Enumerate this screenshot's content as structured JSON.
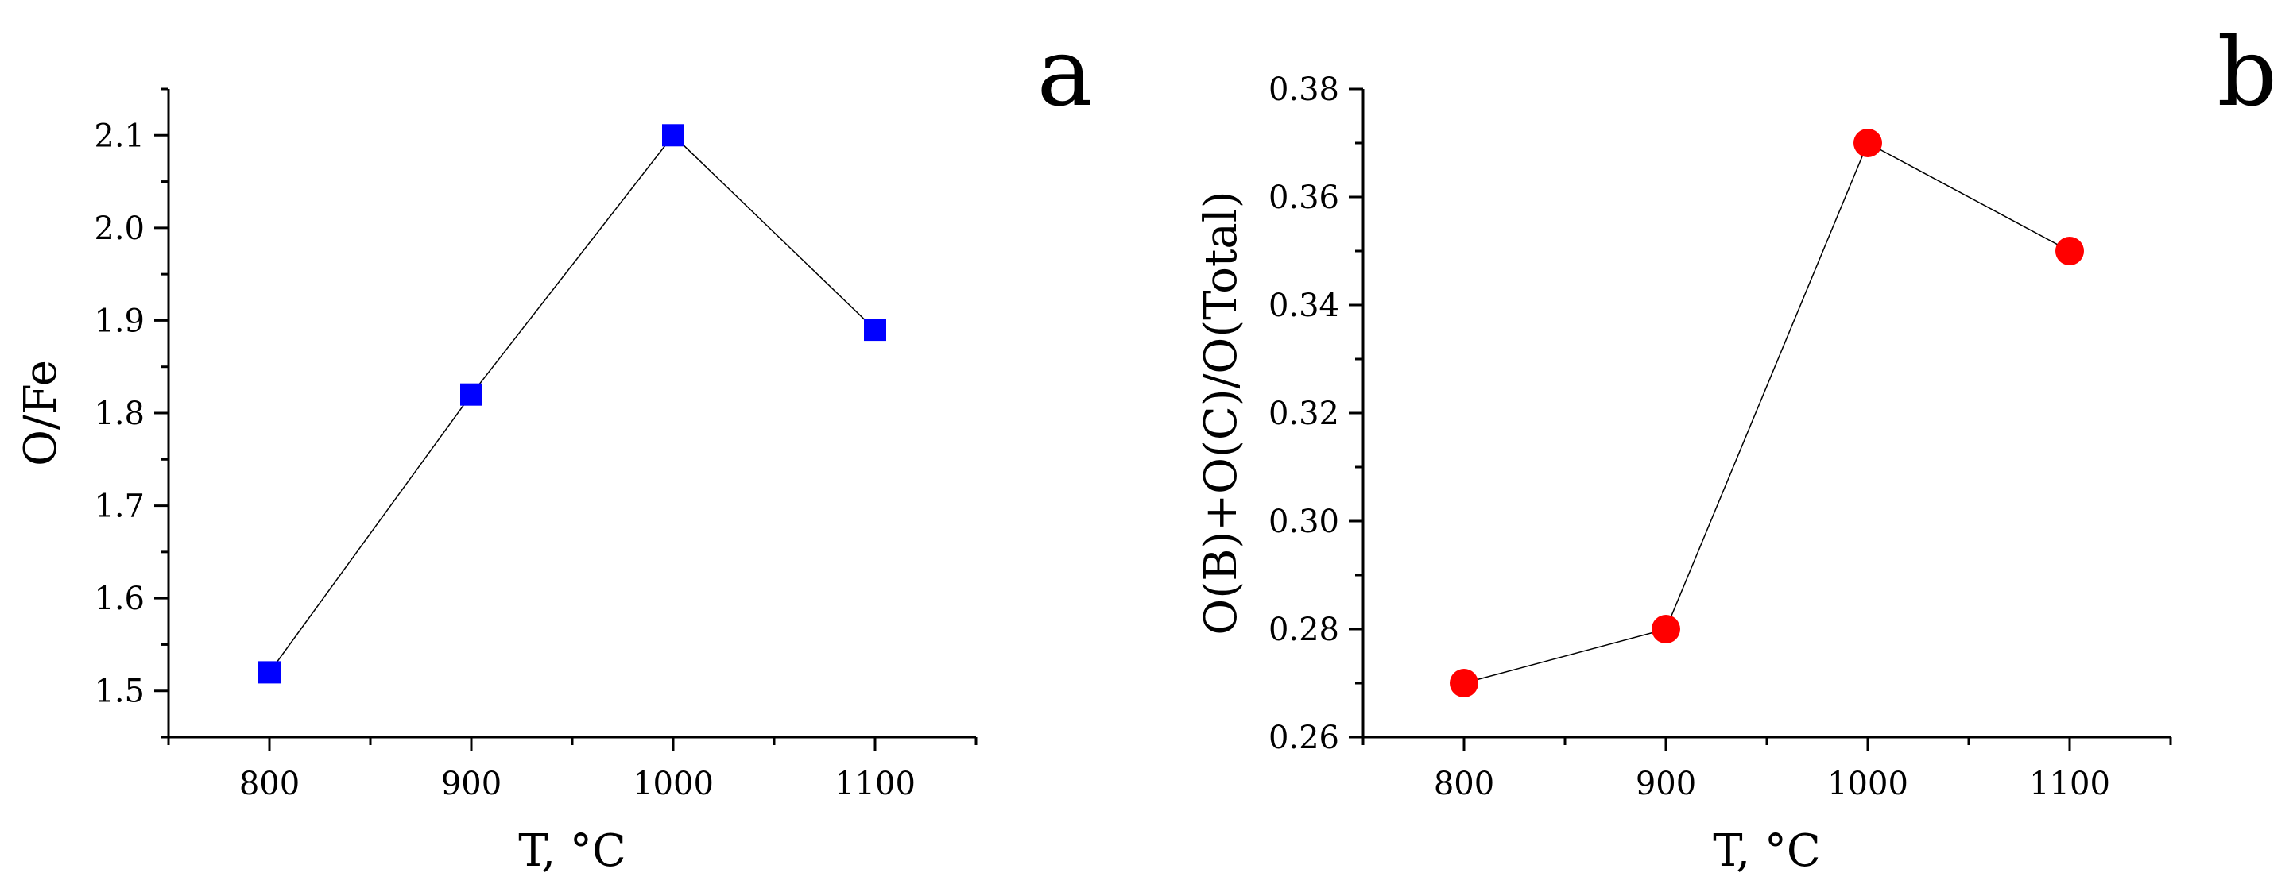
{
  "chart_data": [
    {
      "type": "line",
      "panel_label": "a",
      "xlabel": "T, °C",
      "ylabel": "O/Fe",
      "xlim": [
        750,
        1150
      ],
      "ylim": [
        1.45,
        2.15
      ],
      "xticks": [
        800,
        900,
        1000,
        1100
      ],
      "xtick_labels": [
        "800",
        "900",
        "1000",
        "1100"
      ],
      "yticks": [
        1.5,
        1.6,
        1.7,
        1.8,
        1.9,
        2.0,
        2.1
      ],
      "ytick_labels": [
        "1.5",
        "1.6",
        "1.7",
        "1.8",
        "1.9",
        "2.0",
        "2.1"
      ],
      "x": [
        800,
        900,
        1000,
        1100
      ],
      "series": [
        {
          "values": [
            1.52,
            1.82,
            2.1,
            1.89
          ],
          "marker": "square",
          "color": "#0000ff"
        }
      ],
      "grid": false
    },
    {
      "type": "line",
      "panel_label": "b",
      "xlabel": "T, °C",
      "ylabel": "O(B)+O(C)/O(Total)",
      "xlim": [
        750,
        1150
      ],
      "ylim": [
        0.26,
        0.38
      ],
      "xticks": [
        800,
        900,
        1000,
        1100
      ],
      "xtick_labels": [
        "800",
        "900",
        "1000",
        "1100"
      ],
      "yticks": [
        0.26,
        0.28,
        0.3,
        0.32,
        0.34,
        0.36,
        0.38
      ],
      "ytick_labels": [
        "0.26",
        "0.28",
        "0.30",
        "0.32",
        "0.34",
        "0.36",
        "0.38"
      ],
      "x": [
        800,
        900,
        1000,
        1100
      ],
      "series": [
        {
          "values": [
            0.27,
            0.28,
            0.37,
            0.35
          ],
          "marker": "circle",
          "color": "#ff0000"
        }
      ],
      "grid": false
    }
  ]
}
